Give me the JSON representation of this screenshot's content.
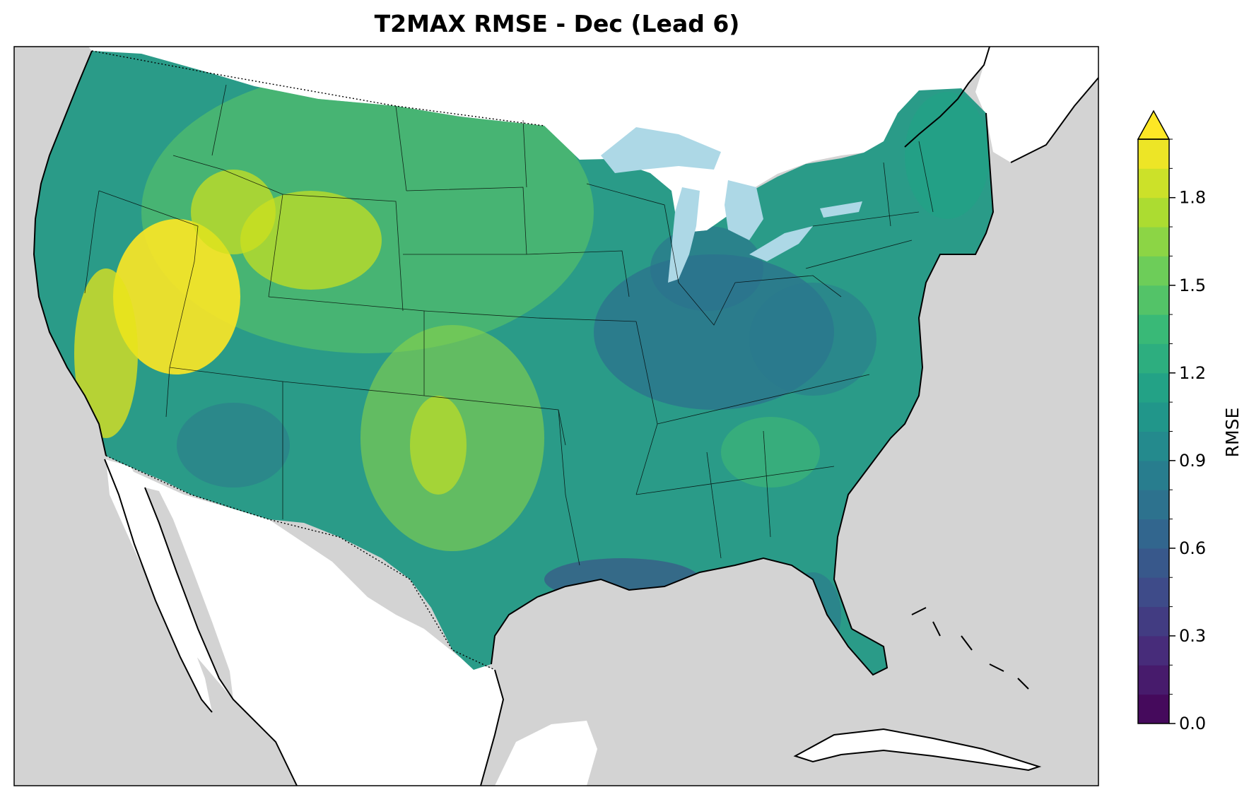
{
  "title": "T2MAX RMSE - Dec (Lead 6)",
  "colorbar": {
    "label": "RMSE",
    "min": 0.0,
    "max": 2.0,
    "extend": "max",
    "colormap": "viridis",
    "levels": 20,
    "ticks": [
      {
        "value": 0.0,
        "label": "0.0"
      },
      {
        "value": 0.3,
        "label": "0.3"
      },
      {
        "value": 0.6,
        "label": "0.6"
      },
      {
        "value": 0.9,
        "label": "0.9"
      },
      {
        "value": 1.2,
        "label": "1.2"
      },
      {
        "value": 1.5,
        "label": "1.5"
      },
      {
        "value": 1.8,
        "label": "1.8"
      }
    ]
  },
  "colors": {
    "land_outside": "#d3d3d3",
    "ocean": "#ffffff",
    "great_lakes": "#add8e6",
    "no_data": "#ffffff"
  }
}
